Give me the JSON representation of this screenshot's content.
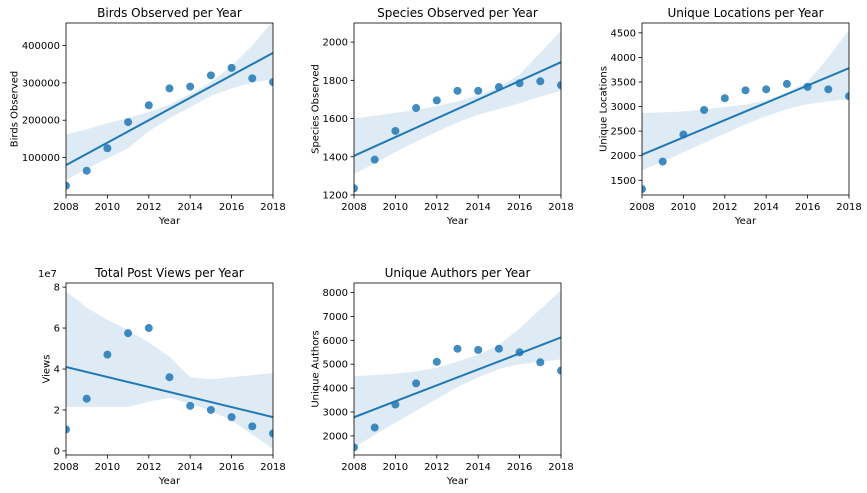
{
  "colors": {
    "point": "#1f77b4",
    "line": "#1f77b4",
    "band": "#1f77b4"
  },
  "chart_data": [
    {
      "type": "scatter",
      "title": "Birds Observed per Year",
      "xlabel": "Year",
      "ylabel": "Birds Observed",
      "xlim": [
        2008,
        2018
      ],
      "ylim": [
        0,
        460000
      ],
      "xticks": [
        2008,
        2010,
        2012,
        2014,
        2016,
        2018
      ],
      "yticks": [
        100000,
        200000,
        300000,
        400000
      ],
      "ytick_labels": [
        "100000",
        "200000",
        "300000",
        "400000"
      ],
      "scale_label": "",
      "x": [
        2008,
        2009,
        2010,
        2011,
        2012,
        2013,
        2014,
        2015,
        2016,
        2017,
        2018
      ],
      "y": [
        25000,
        65000,
        125000,
        195000,
        240000,
        285000,
        290000,
        320000,
        340000,
        312000,
        302000
      ],
      "fit": [
        80000,
        380000
      ],
      "band_low": [
        40000,
        70000,
        98000,
        125000,
        170000,
        205000,
        235000,
        265000,
        285000,
        300000,
        310000
      ],
      "band_high": [
        162000,
        176000,
        192000,
        206000,
        222000,
        242000,
        270000,
        302000,
        345000,
        400000,
        465000
      ]
    },
    {
      "type": "scatter",
      "title": "Species Observed per Year",
      "xlabel": "Year",
      "ylabel": "Species Observed",
      "xlim": [
        2008,
        2018
      ],
      "ylim": [
        1200,
        2100
      ],
      "xticks": [
        2008,
        2010,
        2012,
        2014,
        2016,
        2018
      ],
      "yticks": [
        1200,
        1400,
        1600,
        1800,
        2000
      ],
      "ytick_labels": [
        "1200",
        "1400",
        "1600",
        "1800",
        "2000"
      ],
      "scale_label": "",
      "x": [
        2008,
        2009,
        2010,
        2011,
        2012,
        2013,
        2014,
        2015,
        2016,
        2017,
        2018
      ],
      "y": [
        1235,
        1385,
        1535,
        1655,
        1695,
        1745,
        1745,
        1765,
        1785,
        1795,
        1775
      ],
      "fit": [
        1405,
        1895
      ],
      "band_low": [
        1310,
        1365,
        1425,
        1480,
        1530,
        1580,
        1620,
        1650,
        1680,
        1715,
        1745
      ],
      "band_high": [
        1600,
        1615,
        1630,
        1645,
        1665,
        1690,
        1720,
        1765,
        1830,
        1945,
        2060
      ]
    },
    {
      "type": "scatter",
      "title": "Unique Locations per Year",
      "xlabel": "Year",
      "ylabel": "Unique Locations",
      "xlim": [
        2008,
        2018
      ],
      "ylim": [
        1200,
        4700
      ],
      "xticks": [
        2008,
        2010,
        2012,
        2014,
        2016,
        2018
      ],
      "yticks": [
        1500,
        2000,
        2500,
        3000,
        3500,
        4000,
        4500
      ],
      "ytick_labels": [
        "1500",
        "2000",
        "2500",
        "3000",
        "3500",
        "4000",
        "4500"
      ],
      "scale_label": "",
      "x": [
        2008,
        2009,
        2010,
        2011,
        2012,
        2013,
        2014,
        2015,
        2016,
        2017,
        2018
      ],
      "y": [
        1320,
        1880,
        2430,
        2930,
        3170,
        3330,
        3350,
        3460,
        3400,
        3350,
        3210
      ],
      "fit": [
        2020,
        3780
      ],
      "band_low": [
        1700,
        1880,
        2070,
        2260,
        2450,
        2640,
        2800,
        2950,
        3050,
        3110,
        3150
      ],
      "band_high": [
        2870,
        2880,
        2900,
        2940,
        2990,
        3040,
        3130,
        3290,
        3500,
        4000,
        4560
      ]
    },
    {
      "type": "scatter",
      "title": "Total Post Views per Year",
      "xlabel": "Year",
      "ylabel": "Views",
      "xlim": [
        2008,
        2018
      ],
      "ylim": [
        -0.2,
        8.2
      ],
      "xticks": [
        2008,
        2010,
        2012,
        2014,
        2016,
        2018
      ],
      "yticks": [
        0,
        2,
        4,
        6,
        8
      ],
      "ytick_labels": [
        "0",
        "2",
        "4",
        "6",
        "8"
      ],
      "scale_label": "1e7",
      "x": [
        2008,
        2009,
        2010,
        2011,
        2012,
        2013,
        2014,
        2015,
        2016,
        2017,
        2018
      ],
      "y": [
        1.05,
        2.55,
        4.7,
        5.75,
        6.0,
        3.6,
        2.2,
        2.0,
        1.65,
        1.2,
        0.85
      ],
      "fit": [
        4.1,
        1.65
      ],
      "band_low": [
        2.15,
        2.15,
        2.15,
        2.15,
        2.4,
        2.6,
        2.3,
        1.95,
        1.5,
        0.8,
        0.1
      ],
      "band_high": [
        7.8,
        7.0,
        6.4,
        5.9,
        5.3,
        4.6,
        3.6,
        3.5,
        3.6,
        3.7,
        3.8
      ]
    },
    {
      "type": "scatter",
      "title": "Unique Authors per Year",
      "xlabel": "Year",
      "ylabel": "Unique Authors",
      "xlim": [
        2008,
        2018
      ],
      "ylim": [
        1200,
        8400
      ],
      "xticks": [
        2008,
        2010,
        2012,
        2014,
        2016,
        2018
      ],
      "yticks": [
        2000,
        3000,
        4000,
        5000,
        6000,
        7000,
        8000
      ],
      "ytick_labels": [
        "2000",
        "3000",
        "4000",
        "5000",
        "6000",
        "7000",
        "8000"
      ],
      "scale_label": "",
      "x": [
        2008,
        2009,
        2010,
        2011,
        2012,
        2013,
        2014,
        2015,
        2016,
        2017,
        2018
      ],
      "y": [
        1520,
        2350,
        3310,
        4200,
        5100,
        5650,
        5600,
        5650,
        5500,
        5080,
        4730
      ],
      "fit": [
        2780,
        6120
      ],
      "band_low": [
        1500,
        2050,
        2550,
        3050,
        3550,
        4050,
        4450,
        4800,
        5000,
        5100,
        5200
      ],
      "band_high": [
        4500,
        4550,
        4600,
        4700,
        4850,
        5100,
        5400,
        5800,
        6500,
        7300,
        8100
      ]
    }
  ]
}
